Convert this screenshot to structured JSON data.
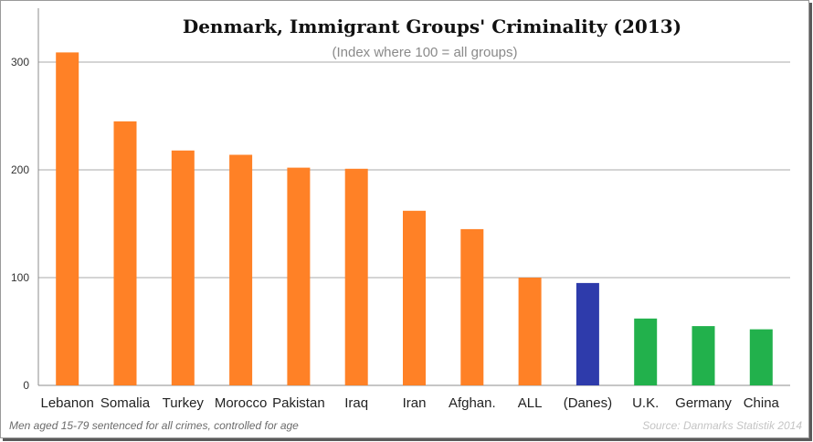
{
  "chart_data": {
    "type": "bar",
    "title": "Denmark, Immigrant Groups' Criminality (2013)",
    "subtitle": "(Index where 100 = all groups)",
    "xlabel": "",
    "ylabel": "",
    "ylim": [
      0,
      350
    ],
    "yticks": [
      "0",
      "100",
      "200",
      "300"
    ],
    "grid": true,
    "categories": [
      "Lebanon",
      "Somalia",
      "Turkey",
      "Morocco",
      "Pakistan",
      "Iraq",
      "Iran",
      "Afghan.",
      "ALL",
      "(Danes)",
      "U.K.",
      "Germany",
      "China"
    ],
    "values": [
      309,
      245,
      218,
      214,
      202,
      201,
      162,
      145,
      100,
      95,
      62,
      55,
      52
    ],
    "bar_colors": [
      "#ff8126",
      "#ff8126",
      "#ff8126",
      "#ff8126",
      "#ff8126",
      "#ff8126",
      "#ff8126",
      "#ff8126",
      "#ff8126",
      "#2e3bab",
      "#22b14c",
      "#22b14c",
      "#22b14c"
    ],
    "footnote": "Men aged 15-79 sentenced for all crimes, controlled for age",
    "source": "Source: Danmarks Statistik 2014"
  }
}
